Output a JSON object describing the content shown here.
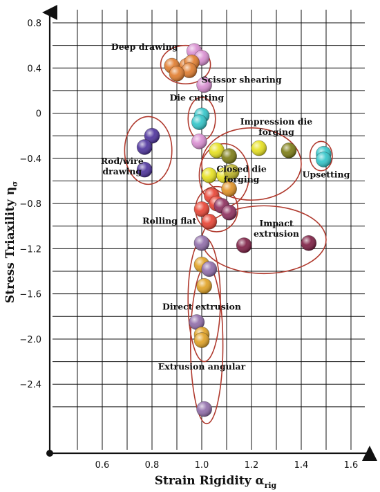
{
  "chart_data": {
    "type": "scatter",
    "xlabel": "Strain Rigidity α",
    "xlabel_sub": "rig",
    "ylabel": "Stress Triaxility η",
    "ylabel_sub": "σ",
    "xlim": [
      0.4,
      1.65
    ],
    "ylim": [
      -2.75,
      0.9
    ],
    "xticks": [
      "0.6",
      "0.8",
      "1.0",
      "1.2",
      "1.4",
      "1.6"
    ],
    "yticks": [
      "0.8",
      "0.4",
      "0",
      "-0.4",
      "-0.8",
      "-1.2",
      "-1.6",
      "-2.0",
      "-2.4"
    ],
    "grid": true,
    "annotations": [
      {
        "lines": [
          "Deep drawing"
        ],
        "x": 0.77,
        "y": 0.56
      },
      {
        "lines": [
          "Scissor shearing"
        ],
        "x": 1.16,
        "y": 0.27
      },
      {
        "lines": [
          "Die cutting"
        ],
        "x": 0.98,
        "y": 0.11
      },
      {
        "lines": [
          "Impression die",
          "forging"
        ],
        "x": 1.3,
        "y": -0.1
      },
      {
        "lines": [
          "Rod/wire",
          "drawing"
        ],
        "x": 0.68,
        "y": -0.45
      },
      {
        "lines": [
          "Closed die",
          "forging"
        ],
        "x": 1.16,
        "y": -0.52
      },
      {
        "lines": [
          "Upsetting"
        ],
        "x": 1.5,
        "y": -0.57
      },
      {
        "lines": [
          "Rolling flat"
        ],
        "x": 0.87,
        "y": -0.98
      },
      {
        "lines": [
          "Impact",
          "extrusion"
        ],
        "x": 1.3,
        "y": -1.0
      },
      {
        "lines": [
          "Direct extrusion"
        ],
        "x": 1.0,
        "y": -1.74
      },
      {
        "lines": [
          "Extrusion angular"
        ],
        "x": 1.0,
        "y": -2.27
      }
    ],
    "groups": [
      {
        "label": "Deep drawing",
        "cx": 0.935,
        "cy": 0.43,
        "rx": 0.1,
        "ry": 0.17
      },
      {
        "label": "Die cutting",
        "cx": 1.0,
        "cy": -0.05,
        "rx": 0.055,
        "ry": 0.19
      },
      {
        "label": "Rod/wire drawing",
        "cx": 0.785,
        "cy": -0.33,
        "rx": 0.095,
        "ry": 0.3
      },
      {
        "label": "Impression die forging",
        "cx": 1.2,
        "cy": -0.45,
        "rx": 0.2,
        "ry": 0.32
      },
      {
        "label": "Upsetting",
        "cx": 1.48,
        "cy": -0.38,
        "rx": 0.045,
        "ry": 0.13
      },
      {
        "label": "Closed die forging",
        "cx": 1.09,
        "cy": -0.55,
        "rx": 0.1,
        "ry": 0.28
      },
      {
        "label": "Rolling flat",
        "cx": 1.06,
        "cy": -0.85,
        "rx": 0.085,
        "ry": 0.2
      },
      {
        "label": "Impact extrusion",
        "cx": 1.25,
        "cy": -1.12,
        "rx": 0.25,
        "ry": 0.3
      },
      {
        "label": "Direct extrusion",
        "cx": 1.01,
        "cy": -1.65,
        "rx": 0.065,
        "ry": 0.55
      },
      {
        "label": "Extrusion angular",
        "cx": 1.02,
        "cy": -2.05,
        "rx": 0.065,
        "ry": 0.7
      }
    ],
    "points": [
      {
        "x": 0.97,
        "y": 0.55,
        "color": "#d88cd0"
      },
      {
        "x": 1.0,
        "y": 0.49,
        "color": "#d88cd0"
      },
      {
        "x": 0.88,
        "y": 0.42,
        "color": "#e07a2a"
      },
      {
        "x": 0.94,
        "y": 0.42,
        "color": "#e07a2a"
      },
      {
        "x": 0.96,
        "y": 0.45,
        "color": "#e07a2a"
      },
      {
        "x": 0.95,
        "y": 0.38,
        "color": "#e07a2a"
      },
      {
        "x": 0.9,
        "y": 0.35,
        "color": "#e07a2a"
      },
      {
        "x": 1.01,
        "y": 0.25,
        "color": "#d88cd0"
      },
      {
        "x": 1.0,
        "y": -0.02,
        "color": "#2ec4c8"
      },
      {
        "x": 0.99,
        "y": -0.08,
        "color": "#2ec4c8"
      },
      {
        "x": 0.99,
        "y": -0.25,
        "color": "#d88cd0"
      },
      {
        "x": 0.8,
        "y": -0.2,
        "color": "#4a2f9a"
      },
      {
        "x": 0.77,
        "y": -0.3,
        "color": "#4a2f9a"
      },
      {
        "x": 0.77,
        "y": -0.5,
        "color": "#4a2f9a"
      },
      {
        "x": 1.06,
        "y": -0.33,
        "color": "#e6e01a"
      },
      {
        "x": 1.11,
        "y": -0.38,
        "color": "#7a7a10"
      },
      {
        "x": 1.23,
        "y": -0.31,
        "color": "#e6e01a"
      },
      {
        "x": 1.35,
        "y": -0.33,
        "color": "#7a7a10"
      },
      {
        "x": 1.49,
        "y": -0.36,
        "color": "#2ec4c8"
      },
      {
        "x": 1.49,
        "y": -0.41,
        "color": "#2ec4c8"
      },
      {
        "x": 1.03,
        "y": -0.55,
        "color": "#e6e01a"
      },
      {
        "x": 1.09,
        "y": -0.55,
        "color": "#e6e01a"
      },
      {
        "x": 1.12,
        "y": -0.52,
        "color": "#b8b020"
      },
      {
        "x": 1.11,
        "y": -0.67,
        "color": "#e09020"
      },
      {
        "x": 1.04,
        "y": -0.73,
        "color": "#e84030"
      },
      {
        "x": 1.06,
        "y": -0.8,
        "color": "#e84030"
      },
      {
        "x": 1.08,
        "y": -0.82,
        "color": "#8b2a5a"
      },
      {
        "x": 1.11,
        "y": -0.88,
        "color": "#8b2a5a"
      },
      {
        "x": 1.0,
        "y": -0.85,
        "color": "#e84030"
      },
      {
        "x": 1.03,
        "y": -0.96,
        "color": "#e84030"
      },
      {
        "x": 1.0,
        "y": -1.15,
        "color": "#8e6aa8"
      },
      {
        "x": 1.17,
        "y": -1.17,
        "color": "#7a1a40"
      },
      {
        "x": 1.43,
        "y": -1.15,
        "color": "#7a1a40"
      },
      {
        "x": 1.0,
        "y": -1.34,
        "color": "#e0a020"
      },
      {
        "x": 1.03,
        "y": -1.38,
        "color": "#8e6aa8"
      },
      {
        "x": 1.01,
        "y": -1.53,
        "color": "#e0a020"
      },
      {
        "x": 0.98,
        "y": -1.85,
        "color": "#8e6aa8"
      },
      {
        "x": 1.0,
        "y": -1.96,
        "color": "#e0a020"
      },
      {
        "x": 1.0,
        "y": -2.01,
        "color": "#e0a020"
      },
      {
        "x": 1.01,
        "y": -2.62,
        "color": "#8e6aa8"
      }
    ]
  }
}
